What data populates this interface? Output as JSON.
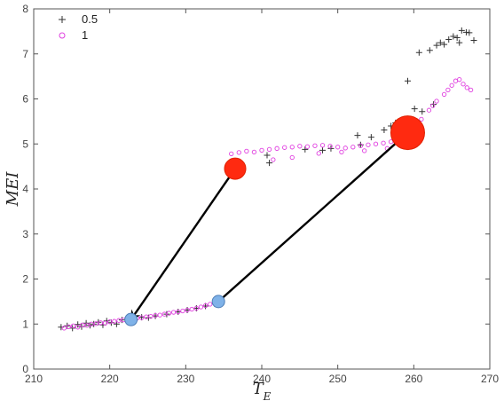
{
  "chart_data": {
    "type": "scatter",
    "xlabel": "T_E",
    "ylabel": "MEI",
    "xlim": [
      210,
      270
    ],
    "ylim": [
      0,
      8
    ],
    "x_ticks": [
      210,
      220,
      230,
      240,
      250,
      260,
      270
    ],
    "y_ticks": [
      0,
      1,
      2,
      3,
      4,
      5,
      6,
      7,
      8
    ],
    "grid": false,
    "legend_position": "top-left",
    "series": [
      {
        "name": "0.5",
        "marker": "plus",
        "color": "#333333",
        "points": [
          [
            213.6,
            0.93
          ],
          [
            214.4,
            0.96
          ],
          [
            215.1,
            0.91
          ],
          [
            215.8,
            0.99
          ],
          [
            216.3,
            0.94
          ],
          [
            216.9,
            1.02
          ],
          [
            217.4,
            0.97
          ],
          [
            217.9,
            1.0
          ],
          [
            218.5,
            1.04
          ],
          [
            219.1,
            0.98
          ],
          [
            219.6,
            1.07
          ],
          [
            220.2,
            1.03
          ],
          [
            220.9,
            1.0
          ],
          [
            221.6,
            1.09
          ],
          [
            222.4,
            1.12
          ],
          [
            223.3,
            1.1
          ],
          [
            224.2,
            1.15
          ],
          [
            225.1,
            1.14
          ],
          [
            226.0,
            1.18
          ],
          [
            227.5,
            1.22
          ],
          [
            229.0,
            1.27
          ],
          [
            230.2,
            1.31
          ],
          [
            231.4,
            1.35
          ],
          [
            232.6,
            1.4
          ],
          [
            233.8,
            1.45
          ],
          [
            240.7,
            4.75
          ],
          [
            241.0,
            4.58
          ],
          [
            245.7,
            4.88
          ],
          [
            248.0,
            4.86
          ],
          [
            249.1,
            4.9
          ],
          [
            252.6,
            5.19
          ],
          [
            253.0,
            4.98
          ],
          [
            254.4,
            5.15
          ],
          [
            256.1,
            5.31
          ],
          [
            257.0,
            5.4
          ],
          [
            257.6,
            5.47
          ],
          [
            258.4,
            5.52
          ],
          [
            259.2,
            6.4
          ],
          [
            260.1,
            5.78
          ],
          [
            260.7,
            7.03
          ],
          [
            261.1,
            5.72
          ],
          [
            262.1,
            7.08
          ],
          [
            262.6,
            5.88
          ],
          [
            263.0,
            7.19
          ],
          [
            263.5,
            7.25
          ],
          [
            264.0,
            7.21
          ],
          [
            264.6,
            7.32
          ],
          [
            265.2,
            7.39
          ],
          [
            265.7,
            7.36
          ],
          [
            266.0,
            7.25
          ],
          [
            266.3,
            7.52
          ],
          [
            266.9,
            7.48
          ],
          [
            267.3,
            7.47
          ],
          [
            267.9,
            7.3
          ]
        ]
      },
      {
        "name": "1",
        "marker": "circle",
        "color": "#e040e0",
        "points": [
          [
            214.0,
            0.91
          ],
          [
            214.6,
            0.94
          ],
          [
            215.2,
            0.96
          ],
          [
            215.8,
            0.93
          ],
          [
            216.4,
            0.98
          ],
          [
            217.0,
            0.97
          ],
          [
            217.6,
            1.0
          ],
          [
            218.2,
            1.01
          ],
          [
            218.8,
            1.03
          ],
          [
            219.4,
            1.02
          ],
          [
            220.0,
            1.05
          ],
          [
            220.6,
            1.06
          ],
          [
            221.2,
            1.08
          ],
          [
            221.8,
            1.09
          ],
          [
            222.4,
            1.1
          ],
          [
            223.0,
            1.12
          ],
          [
            223.6,
            1.13
          ],
          [
            224.2,
            1.14
          ],
          [
            224.8,
            1.16
          ],
          [
            225.4,
            1.17
          ],
          [
            226.0,
            1.19
          ],
          [
            226.6,
            1.2
          ],
          [
            227.2,
            1.22
          ],
          [
            227.8,
            1.24
          ],
          [
            228.4,
            1.26
          ],
          [
            229.0,
            1.27
          ],
          [
            229.6,
            1.29
          ],
          [
            230.2,
            1.31
          ],
          [
            230.8,
            1.33
          ],
          [
            231.4,
            1.35
          ],
          [
            232.0,
            1.38
          ],
          [
            232.6,
            1.41
          ],
          [
            233.2,
            1.44
          ],
          [
            233.8,
            1.47
          ],
          [
            236.0,
            4.78
          ],
          [
            237.0,
            4.81
          ],
          [
            238.0,
            4.84
          ],
          [
            239.0,
            4.82
          ],
          [
            240.0,
            4.86
          ],
          [
            241.0,
            4.88
          ],
          [
            242.0,
            4.9
          ],
          [
            243.0,
            4.92
          ],
          [
            244.0,
            4.93
          ],
          [
            245.0,
            4.95
          ],
          [
            246.0,
            4.94
          ],
          [
            247.0,
            4.96
          ],
          [
            248.0,
            4.97
          ],
          [
            249.0,
            4.95
          ],
          [
            250.0,
            4.93
          ],
          [
            251.0,
            4.91
          ],
          [
            252.0,
            4.93
          ],
          [
            253.0,
            4.96
          ],
          [
            254.0,
            4.98
          ],
          [
            255.0,
            5.0
          ],
          [
            256.0,
            5.02
          ],
          [
            257.0,
            5.05
          ],
          [
            258.0,
            5.1
          ],
          [
            259.0,
            5.18
          ],
          [
            260.0,
            5.35
          ],
          [
            261.0,
            5.55
          ],
          [
            262.0,
            5.75
          ],
          [
            263.0,
            5.95
          ],
          [
            264.0,
            6.1
          ],
          [
            265.0,
            6.3
          ],
          [
            265.5,
            6.4
          ],
          [
            266.0,
            6.43
          ],
          [
            266.5,
            6.33
          ],
          [
            267.0,
            6.25
          ],
          [
            267.5,
            6.2
          ],
          [
            241.5,
            4.65
          ],
          [
            244.0,
            4.7
          ],
          [
            247.5,
            4.79
          ],
          [
            250.5,
            4.82
          ],
          [
            253.5,
            4.85
          ],
          [
            256.5,
            4.9
          ],
          [
            259.5,
            5.28
          ],
          [
            262.5,
            5.85
          ],
          [
            264.5,
            6.2
          ]
        ]
      }
    ],
    "annotations": {
      "red_markers": [
        {
          "x": 236.5,
          "y": 4.45,
          "size": "medium"
        },
        {
          "x": 259.2,
          "y": 5.25,
          "size": "large"
        }
      ],
      "blue_markers": [
        {
          "x": 222.8,
          "y": 1.1
        },
        {
          "x": 234.3,
          "y": 1.5
        }
      ],
      "arrows": [
        {
          "from": [
            236.5,
            4.45
          ],
          "to": [
            222.8,
            1.1
          ]
        },
        {
          "from": [
            234.3,
            1.5
          ],
          "to": [
            259.2,
            5.25
          ]
        }
      ]
    }
  }
}
